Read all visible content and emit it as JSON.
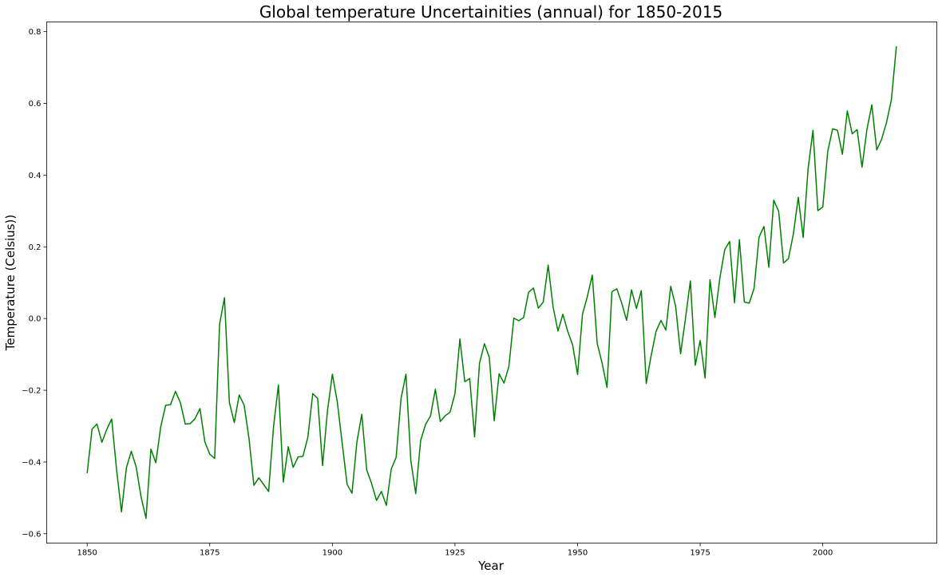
{
  "chart_data": {
    "type": "line",
    "title": "Global temperature Uncertainities (annual) for 1850-2015",
    "xlabel": "Year",
    "ylabel": "Temperature (Celsius))",
    "xlim": [
      1841.75,
      2023.25
    ],
    "ylim": [
      -0.626,
      0.827
    ],
    "xticks": [
      1850,
      1875,
      1900,
      1925,
      1950,
      1975,
      2000
    ],
    "yticks": [
      -0.6,
      -0.4,
      -0.2,
      0.0,
      0.2,
      0.4,
      0.6,
      0.8
    ],
    "ytick_labels": [
      "−0.6",
      "−0.4",
      "−0.2",
      "0.0",
      "0.2",
      "0.4",
      "0.6",
      "0.8"
    ],
    "grid": false,
    "series": [
      {
        "color": "#008000",
        "x_start": 1850,
        "x_end": 2015,
        "values": [
          -0.431,
          -0.308,
          -0.294,
          -0.345,
          -0.309,
          -0.28,
          -0.422,
          -0.539,
          -0.416,
          -0.37,
          -0.414,
          -0.498,
          -0.557,
          -0.364,
          -0.402,
          -0.302,
          -0.242,
          -0.24,
          -0.203,
          -0.234,
          -0.294,
          -0.293,
          -0.279,
          -0.251,
          -0.344,
          -0.378,
          -0.39,
          -0.016,
          0.058,
          -0.234,
          -0.29,
          -0.213,
          -0.241,
          -0.334,
          -0.465,
          -0.444,
          -0.463,
          -0.482,
          -0.302,
          -0.185,
          -0.456,
          -0.357,
          -0.415,
          -0.386,
          -0.384,
          -0.331,
          -0.209,
          -0.223,
          -0.41,
          -0.257,
          -0.155,
          -0.232,
          -0.347,
          -0.462,
          -0.487,
          -0.344,
          -0.267,
          -0.422,
          -0.46,
          -0.507,
          -0.482,
          -0.521,
          -0.42,
          -0.387,
          -0.223,
          -0.155,
          -0.396,
          -0.488,
          -0.34,
          -0.295,
          -0.272,
          -0.197,
          -0.287,
          -0.271,
          -0.261,
          -0.209,
          -0.057,
          -0.176,
          -0.167,
          -0.33,
          -0.125,
          -0.07,
          -0.108,
          -0.285,
          -0.154,
          -0.18,
          -0.133,
          0.001,
          -0.006,
          0.003,
          0.073,
          0.085,
          0.029,
          0.046,
          0.149,
          0.033,
          -0.035,
          0.012,
          -0.036,
          -0.074,
          -0.156,
          0.012,
          0.062,
          0.121,
          -0.069,
          -0.124,
          -0.192,
          0.075,
          0.083,
          0.043,
          -0.005,
          0.08,
          0.028,
          0.078,
          -0.181,
          -0.103,
          -0.036,
          -0.005,
          -0.032,
          0.09,
          0.034,
          -0.098,
          0.0,
          0.105,
          -0.13,
          -0.061,
          -0.166,
          0.108,
          0.003,
          0.112,
          0.192,
          0.215,
          0.044,
          0.22,
          0.046,
          0.043,
          0.085,
          0.227,
          0.257,
          0.143,
          0.33,
          0.299,
          0.155,
          0.167,
          0.236,
          0.338,
          0.226,
          0.417,
          0.525,
          0.301,
          0.311,
          0.465,
          0.529,
          0.525,
          0.458,
          0.579,
          0.515,
          0.527,
          0.422,
          0.527,
          0.596,
          0.47,
          0.5,
          0.547,
          0.611,
          0.759
        ]
      }
    ]
  }
}
